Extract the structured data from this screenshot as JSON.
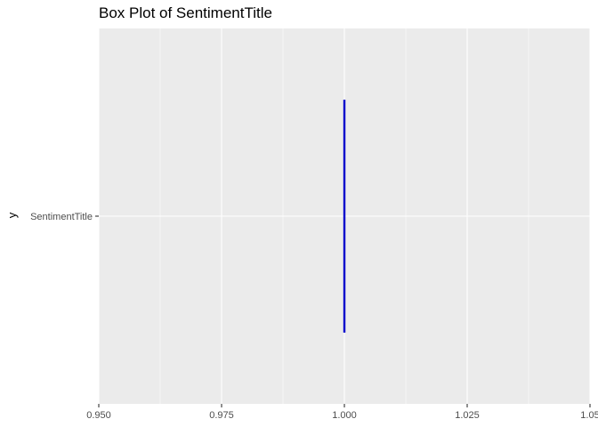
{
  "chart_data": {
    "type": "box",
    "title": "Box Plot of SentimentTitle",
    "xlabel": "",
    "ylabel": "y",
    "orientation": "horizontal",
    "categories": [
      "SentimentTitle"
    ],
    "boxes": [
      {
        "category": "SentimentTitle",
        "min": 1.0,
        "q1": 1.0,
        "median": 1.0,
        "q3": 1.0,
        "max": 1.0
      }
    ],
    "xlim": [
      0.95,
      1.05
    ],
    "xticks": [
      0.95,
      0.975,
      1.0,
      1.025,
      1.05
    ],
    "xtick_labels": [
      "0.950",
      "0.975",
      "1.000",
      "1.025",
      "1.05"
    ],
    "grid": true,
    "legend": "none",
    "colors": {
      "panel": "#EBEBEB",
      "grid": "#FFFFFF",
      "box": "#0000CC"
    }
  }
}
